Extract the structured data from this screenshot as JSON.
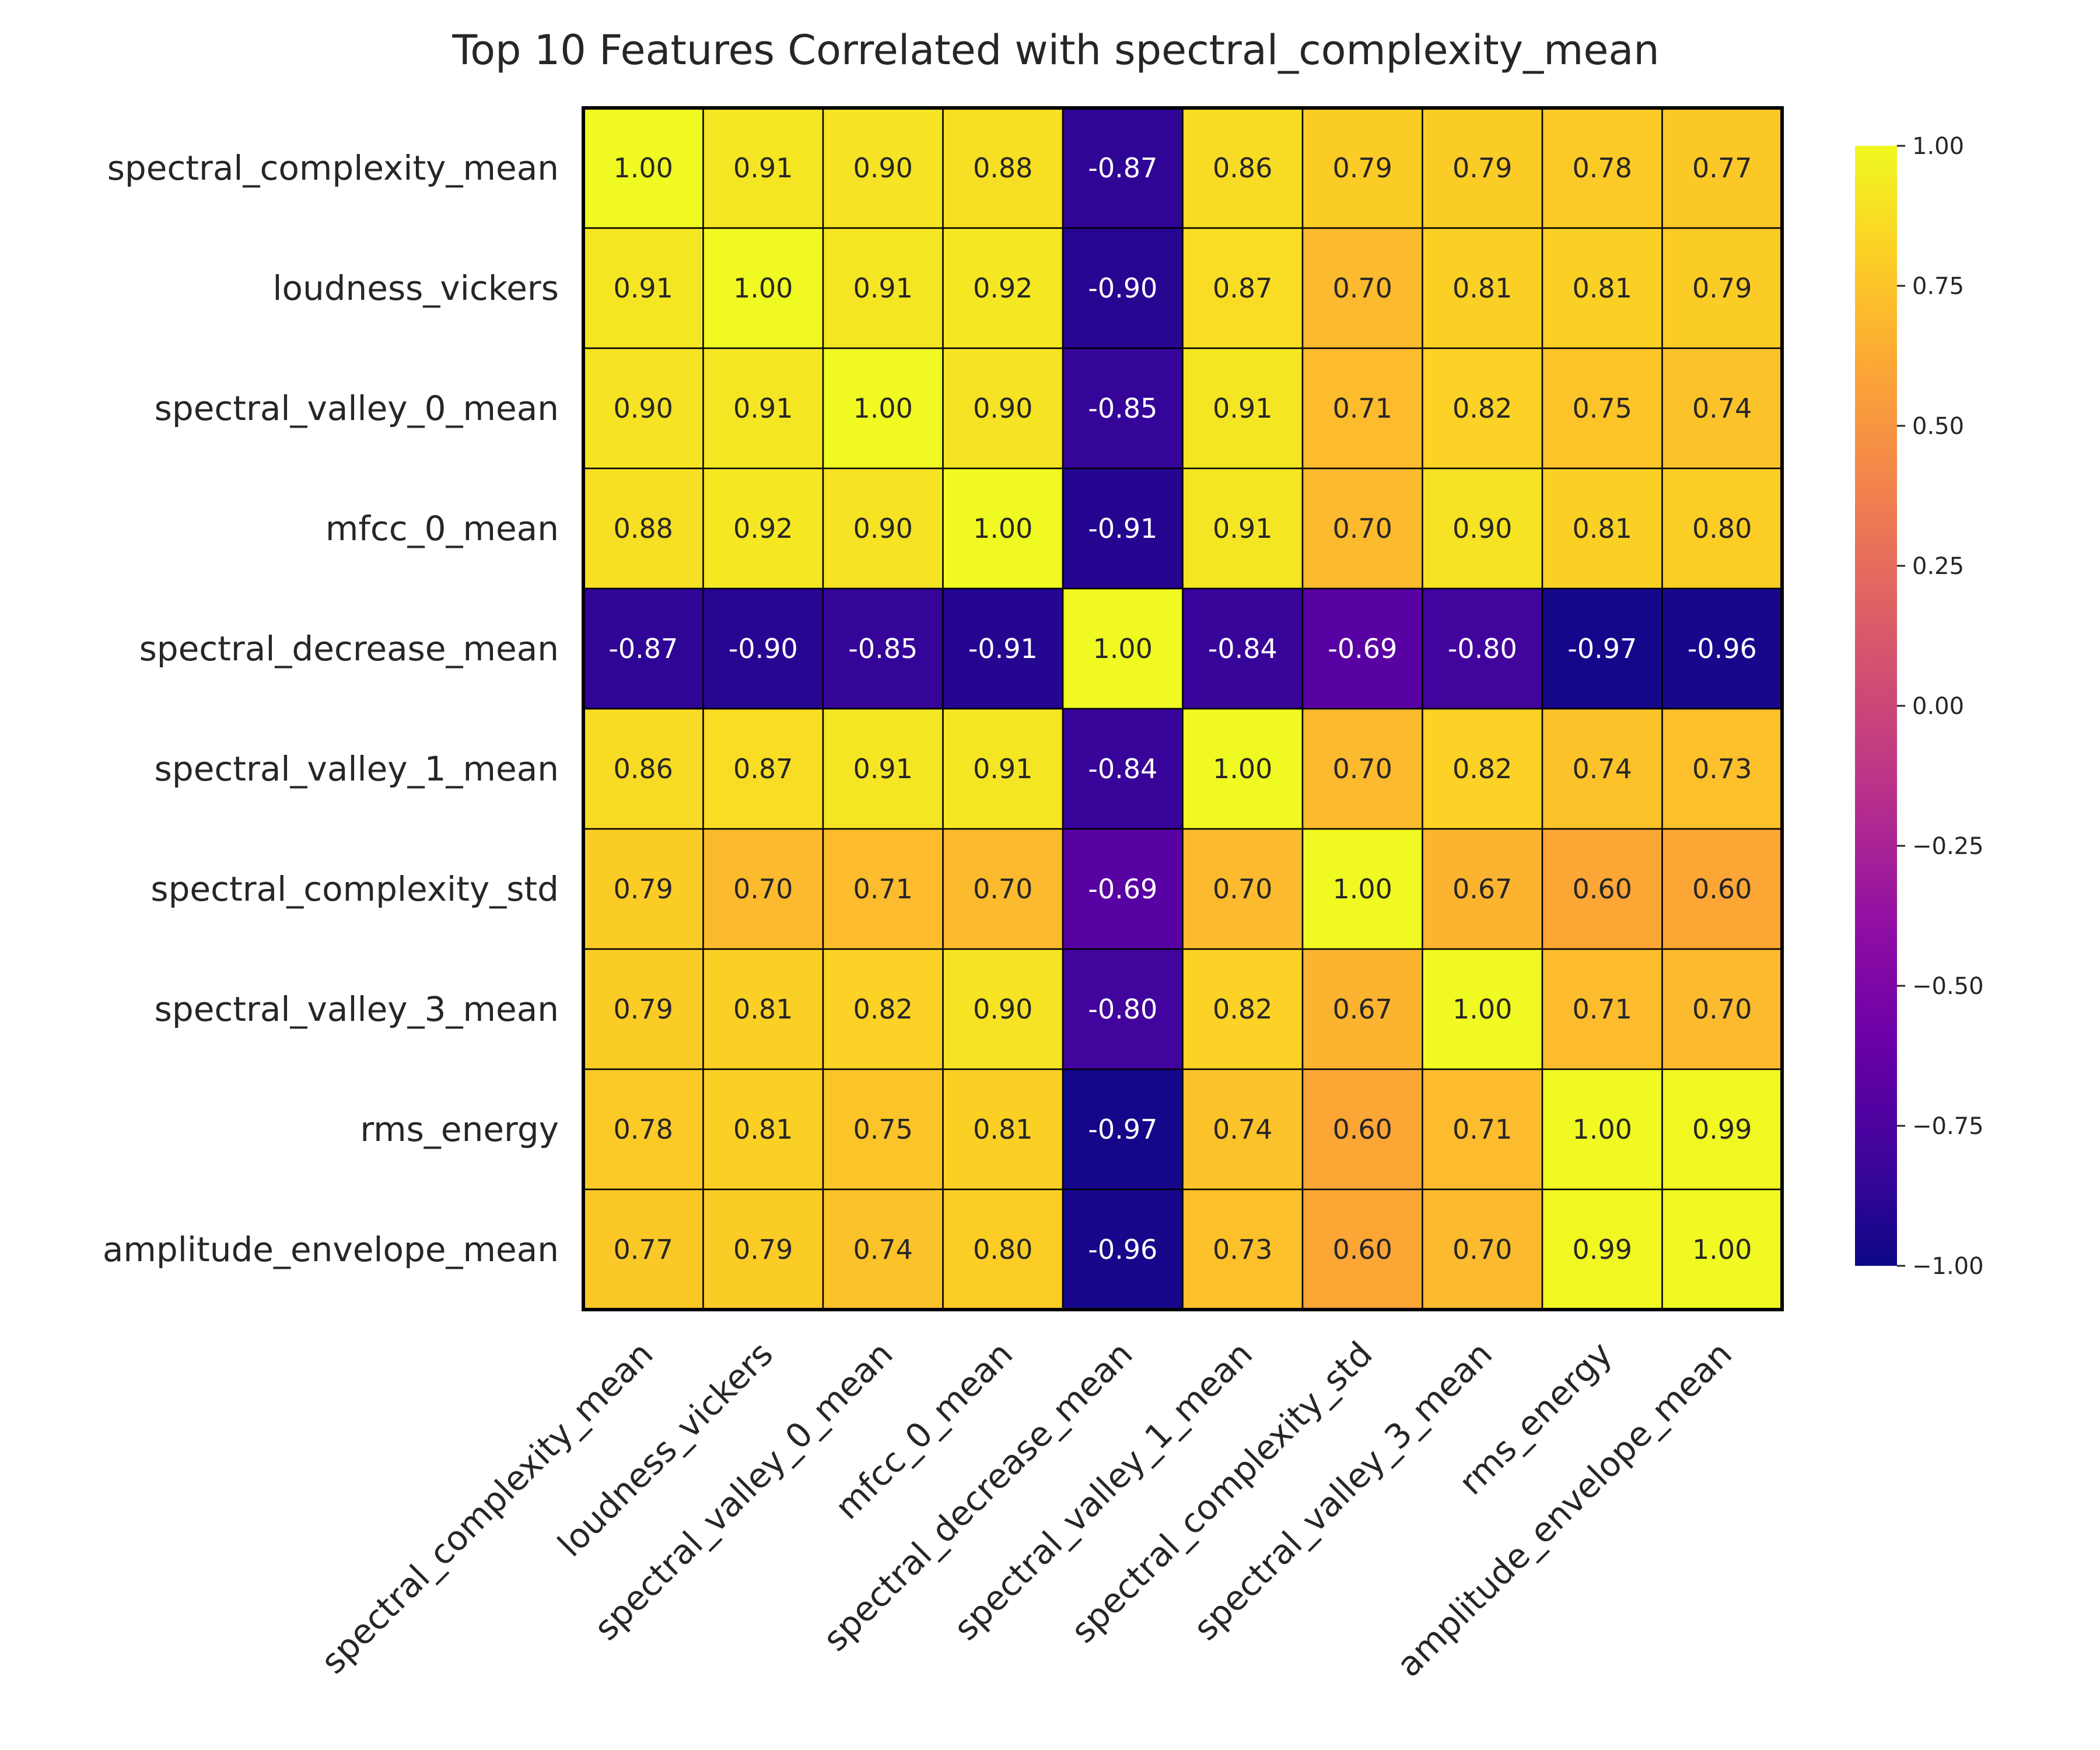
{
  "chart_data": {
    "type": "heatmap",
    "title": "Top 10 Features Correlated with spectral_complexity_mean",
    "xlabel": "",
    "ylabel": "",
    "colormap": "plasma",
    "vmin": -1.0,
    "vmax": 1.0,
    "value_format": "2 decimals",
    "rows": [
      "spectral_complexity_mean",
      "loudness_vickers",
      "spectral_valley_0_mean",
      "mfcc_0_mean",
      "spectral_decrease_mean",
      "spectral_valley_1_mean",
      "spectral_complexity_std",
      "spectral_valley_3_mean",
      "rms_energy",
      "amplitude_envelope_mean"
    ],
    "columns": [
      "spectral_complexity_mean",
      "loudness_vickers",
      "spectral_valley_0_mean",
      "mfcc_0_mean",
      "spectral_decrease_mean",
      "spectral_valley_1_mean",
      "spectral_complexity_std",
      "spectral_valley_3_mean",
      "rms_energy",
      "amplitude_envelope_mean"
    ],
    "values": [
      [
        1.0,
        0.91,
        0.9,
        0.88,
        -0.87,
        0.86,
        0.79,
        0.79,
        0.78,
        0.77
      ],
      [
        0.91,
        1.0,
        0.91,
        0.92,
        -0.9,
        0.87,
        0.7,
        0.81,
        0.81,
        0.79
      ],
      [
        0.9,
        0.91,
        1.0,
        0.9,
        -0.85,
        0.91,
        0.71,
        0.82,
        0.75,
        0.74
      ],
      [
        0.88,
        0.92,
        0.9,
        1.0,
        -0.91,
        0.91,
        0.7,
        0.9,
        0.81,
        0.8
      ],
      [
        -0.87,
        -0.9,
        -0.85,
        -0.91,
        1.0,
        -0.84,
        -0.69,
        -0.8,
        -0.97,
        -0.96
      ],
      [
        0.86,
        0.87,
        0.91,
        0.91,
        -0.84,
        1.0,
        0.7,
        0.82,
        0.74,
        0.73
      ],
      [
        0.79,
        0.7,
        0.71,
        0.7,
        -0.69,
        0.7,
        1.0,
        0.67,
        0.6,
        0.6
      ],
      [
        0.79,
        0.81,
        0.82,
        0.9,
        -0.8,
        0.82,
        0.67,
        1.0,
        0.71,
        0.7
      ],
      [
        0.78,
        0.81,
        0.75,
        0.81,
        -0.97,
        0.74,
        0.6,
        0.71,
        1.0,
        0.99
      ],
      [
        0.77,
        0.79,
        0.74,
        0.8,
        -0.96,
        0.73,
        0.6,
        0.7,
        0.99,
        1.0
      ]
    ],
    "colorbar": {
      "ticks": [
        1.0,
        0.75,
        0.5,
        0.25,
        0.0,
        -0.25,
        -0.5,
        -0.75,
        -1.0
      ],
      "tick_labels": [
        "1.00",
        "0.75",
        "0.50",
        "0.25",
        "0.00",
        "−0.25",
        "−0.50",
        "−0.75",
        "−1.00"
      ]
    },
    "grid": false,
    "legend": "colorbar-right"
  }
}
